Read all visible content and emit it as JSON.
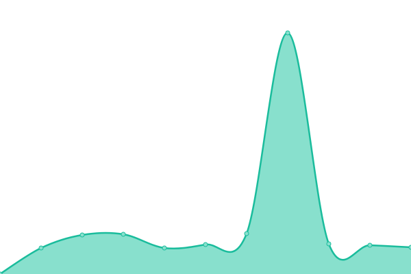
{
  "chart_data": {
    "type": "area",
    "categories": [
      null,
      null,
      null,
      null,
      null,
      null,
      null,
      null,
      null,
      null,
      null
    ],
    "values": [
      0,
      38,
      57,
      58,
      38,
      43,
      59,
      352,
      44,
      42,
      39
    ],
    "ylim": [
      0,
      400
    ],
    "color": "#1abc9c",
    "fill_color": "#88e0cd"
  }
}
